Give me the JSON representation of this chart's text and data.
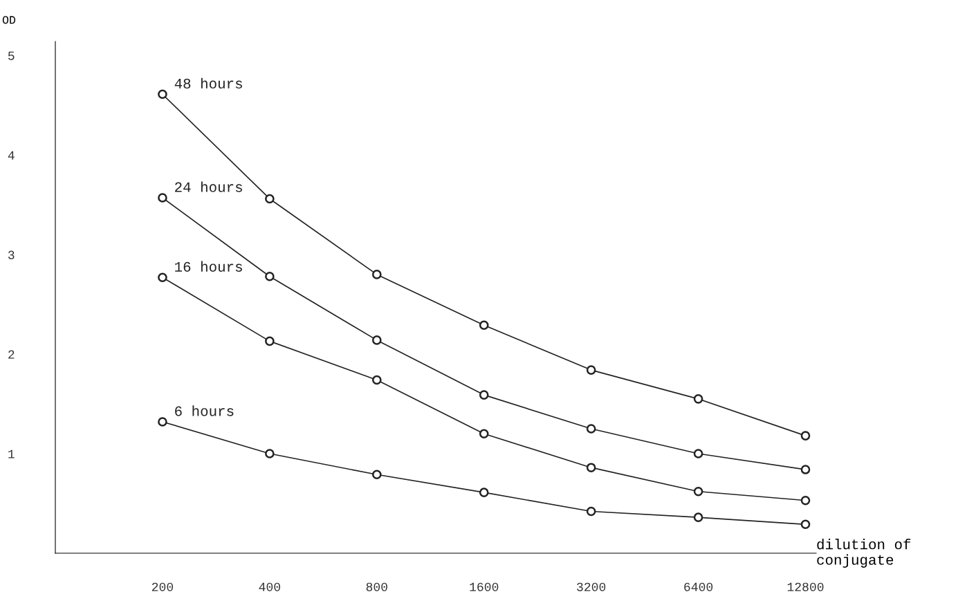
{
  "chart_data": {
    "type": "line",
    "ylabel": "OD",
    "xlabel": "dilution of conjugate",
    "categories": [
      "200",
      "400",
      "800",
      "1600",
      "3200",
      "6400",
      "12800"
    ],
    "ylim": [
      0,
      5.14
    ],
    "yticks": [
      1,
      2,
      3,
      4,
      5
    ],
    "grid": false,
    "legend": false,
    "marker": "circle",
    "line_style": "solid",
    "series": [
      {
        "name": "48 hours",
        "color": "#222222",
        "values": [
          4.61,
          3.56,
          2.8,
          2.29,
          1.84,
          1.55,
          1.18
        ]
      },
      {
        "name": "24 hours",
        "color": "#222222",
        "values": [
          3.57,
          2.78,
          2.14,
          1.59,
          1.25,
          1.0,
          0.84
        ]
      },
      {
        "name": "16 hours",
        "color": "#222222",
        "values": [
          2.77,
          2.13,
          1.74,
          1.2,
          0.86,
          0.62,
          0.53
        ]
      },
      {
        "name": "6 hours",
        "color": "#222222",
        "values": [
          1.32,
          1.0,
          0.79,
          0.61,
          0.42,
          0.36,
          0.29
        ]
      }
    ]
  }
}
